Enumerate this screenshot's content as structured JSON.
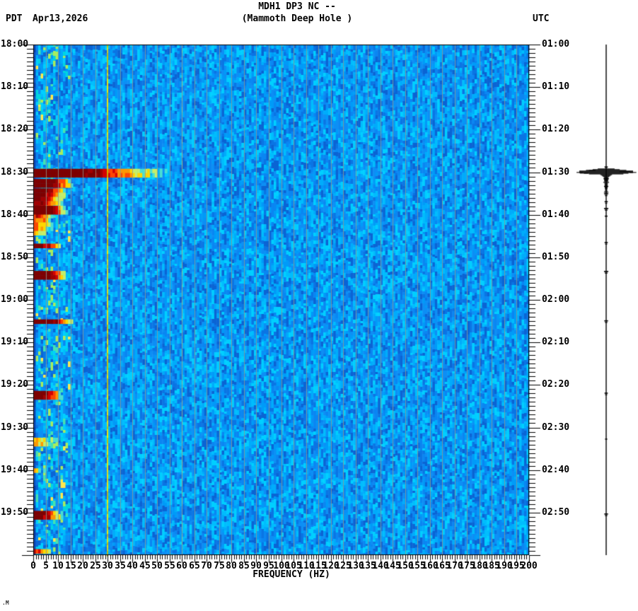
{
  "header": {
    "tz_left": "PDT",
    "date": "Apr13,2026",
    "title_line1": "MDH1 DP3 NC --",
    "title_line2": "(Mammoth Deep Hole )",
    "tz_right": "UTC"
  },
  "corner_mark": ".M",
  "chart_data": {
    "type": "heatmap",
    "subtype": "seismic-spectrogram",
    "title": "MDH1 DP3 NC -- (Mammoth Deep Hole )",
    "station": {
      "code": "MDH1",
      "channel": "DP3",
      "network": "NC",
      "location": "--",
      "site_name": "Mammoth Deep Hole"
    },
    "xlabel": "FREQUENCY (HZ)",
    "freq_range_hz": [
      0,
      200
    ],
    "freq_minor_tick_hz": 1,
    "freq_label_step_hz": 5,
    "freq_labels": [
      0,
      5,
      10,
      15,
      20,
      25,
      30,
      35,
      40,
      45,
      50,
      55,
      60,
      65,
      70,
      75,
      80,
      85,
      90,
      95,
      100,
      105,
      110,
      115,
      120,
      125,
      130,
      135,
      140,
      145,
      150,
      155,
      160,
      165,
      170,
      175,
      180,
      185,
      190,
      195,
      200
    ],
    "time_start_pdt": "18:00",
    "time_end_pdt": "20:00",
    "time_minor_tick_min": 1,
    "time_major_tick_min": 10,
    "utc_offset_hours": 7,
    "pdt_labels": [
      {
        "label": "18:00",
        "minute": 0
      },
      {
        "label": "18:10",
        "minute": 10
      },
      {
        "label": "18:20",
        "minute": 20
      },
      {
        "label": "18:30",
        "minute": 30
      },
      {
        "label": "18:40",
        "minute": 40
      },
      {
        "label": "18:50",
        "minute": 50
      },
      {
        "label": "19:00",
        "minute": 60
      },
      {
        "label": "19:10",
        "minute": 70
      },
      {
        "label": "19:20",
        "minute": 80
      },
      {
        "label": "19:30",
        "minute": 90
      },
      {
        "label": "19:40",
        "minute": 100
      },
      {
        "label": "19:50",
        "minute": 110
      }
    ],
    "utc_labels": [
      {
        "label": "01:00",
        "minute": 0
      },
      {
        "label": "01:10",
        "minute": 10
      },
      {
        "label": "01:20",
        "minute": 20
      },
      {
        "label": "01:30",
        "minute": 30
      },
      {
        "label": "01:40",
        "minute": 40
      },
      {
        "label": "01:50",
        "minute": 50
      },
      {
        "label": "02:00",
        "minute": 60
      },
      {
        "label": "02:10",
        "minute": 70
      },
      {
        "label": "02:20",
        "minute": 80
      },
      {
        "label": "02:30",
        "minute": 90
      },
      {
        "label": "02:40",
        "minute": 100
      },
      {
        "label": "02:50",
        "minute": 110
      }
    ],
    "grid": {
      "vertical_gridlines_every_hz": 5,
      "color": "#90978c"
    },
    "tonal_lines": [
      {
        "freq_hz": 30,
        "color": "#f2ea00",
        "style": "strong"
      },
      {
        "freq_hz": 60,
        "color": "#d4e26a",
        "style": "faint"
      }
    ],
    "background_palette": [
      "#0a86f2",
      "#0d8ff5",
      "#009bf8",
      "#00acfb",
      "#00bdfd",
      "#00cfff",
      "#0a75e4",
      "#0b64d4"
    ],
    "lowband_palette": [
      "#00d4e0",
      "#45e2b0",
      "#a8ec5e",
      "#ffe84d"
    ],
    "leftedge_palette": [
      "#0b3fa8",
      "#0c49b8",
      "#0e54c4"
    ],
    "heat_ramp": [
      {
        "min_v": 0.88,
        "color": "#7e0000"
      },
      {
        "min_v": 0.78,
        "color": "#a30000"
      },
      {
        "min_v": 0.68,
        "color": "#d40000"
      },
      {
        "min_v": 0.58,
        "color": "#ff4600"
      },
      {
        "min_v": 0.5,
        "color": "#ff9800"
      },
      {
        "min_v": 0.42,
        "color": "#ffd800"
      },
      {
        "min_v": 0.35,
        "color": "#c6ee6a"
      },
      {
        "min_v": 0.29,
        "color": "#4adfd2"
      }
    ],
    "events": [
      {
        "pdt": "18:29",
        "utc": "01:29",
        "minute": 29.2,
        "duration_min": 2.2,
        "red_max_hz": 29,
        "tail_max_hz": 54,
        "intensity": 1.0,
        "decay": false
      },
      {
        "pdt": "18:32",
        "utc": "01:32",
        "minute": 31.6,
        "duration_min": 2.0,
        "red_max_hz": 10,
        "tail_max_hz": 16,
        "intensity": 0.95,
        "decay": false
      },
      {
        "pdt": "18:34",
        "utc": "01:34",
        "minute": 33.8,
        "duration_min": 11.0,
        "red_max_hz": 8,
        "tail_max_hz": 14,
        "intensity": 0.9,
        "decay": true
      },
      {
        "pdt": "18:38",
        "utc": "01:38",
        "minute": 37.9,
        "duration_min": 2.2,
        "red_max_hz": 9,
        "tail_max_hz": 13,
        "intensity": 0.95,
        "decay": false
      },
      {
        "pdt": "18:47",
        "utc": "01:47",
        "minute": 46.8,
        "duration_min": 1.4,
        "red_max_hz": 8,
        "tail_max_hz": 11,
        "intensity": 0.82,
        "decay": false
      },
      {
        "pdt": "18:53",
        "utc": "01:53",
        "minute": 53.2,
        "duration_min": 1.7,
        "red_max_hz": 9,
        "tail_max_hz": 13,
        "intensity": 0.9,
        "decay": false
      },
      {
        "pdt": "19:05",
        "utc": "02:05",
        "minute": 64.6,
        "duration_min": 1.4,
        "red_max_hz": 11,
        "tail_max_hz": 17,
        "intensity": 0.97,
        "decay": false
      },
      {
        "pdt": "19:22",
        "utc": "02:22",
        "minute": 81.4,
        "duration_min": 1.8,
        "red_max_hz": 8,
        "tail_max_hz": 12,
        "intensity": 0.85,
        "decay": false
      },
      {
        "pdt": "19:33",
        "utc": "02:33",
        "minute": 92.4,
        "duration_min": 2.4,
        "red_max_hz": 0,
        "tail_max_hz": 13,
        "intensity": 0.55,
        "decay": false
      },
      {
        "pdt": "19:40",
        "utc": "02:40",
        "minute": 99.6,
        "duration_min": 1.0,
        "red_max_hz": 0,
        "tail_max_hz": 6,
        "intensity": 0.45,
        "decay": false
      },
      {
        "pdt": "19:50",
        "utc": "02:50",
        "minute": 109.6,
        "duration_min": 1.6,
        "red_max_hz": 7,
        "tail_max_hz": 12,
        "intensity": 0.82,
        "decay": false
      },
      {
        "pdt": "19:59",
        "utc": "02:59",
        "minute": 118.6,
        "duration_min": 1.3,
        "red_max_hz": 4,
        "tail_max_hz": 10,
        "intensity": 0.62,
        "decay": false
      }
    ],
    "trace": {
      "description": "vertical amplitude trace, right margin",
      "events": [
        {
          "minute": 29.8,
          "rel_amp": 1.0
        },
        {
          "minute": 31.4,
          "rel_amp": 0.1
        },
        {
          "minute": 33.2,
          "rel_amp": 0.08
        },
        {
          "minute": 35.0,
          "rel_amp": 0.07
        },
        {
          "minute": 36.8,
          "rel_amp": 0.06
        },
        {
          "minute": 38.4,
          "rel_amp": 0.08
        },
        {
          "minute": 40.2,
          "rel_amp": 0.05
        },
        {
          "minute": 46.4,
          "rel_amp": 0.06
        },
        {
          "minute": 53.2,
          "rel_amp": 0.08
        },
        {
          "minute": 64.8,
          "rel_amp": 0.07
        },
        {
          "minute": 81.8,
          "rel_amp": 0.06
        },
        {
          "minute": 92.6,
          "rel_amp": 0.04
        },
        {
          "minute": 110.2,
          "rel_amp": 0.07
        }
      ]
    }
  }
}
